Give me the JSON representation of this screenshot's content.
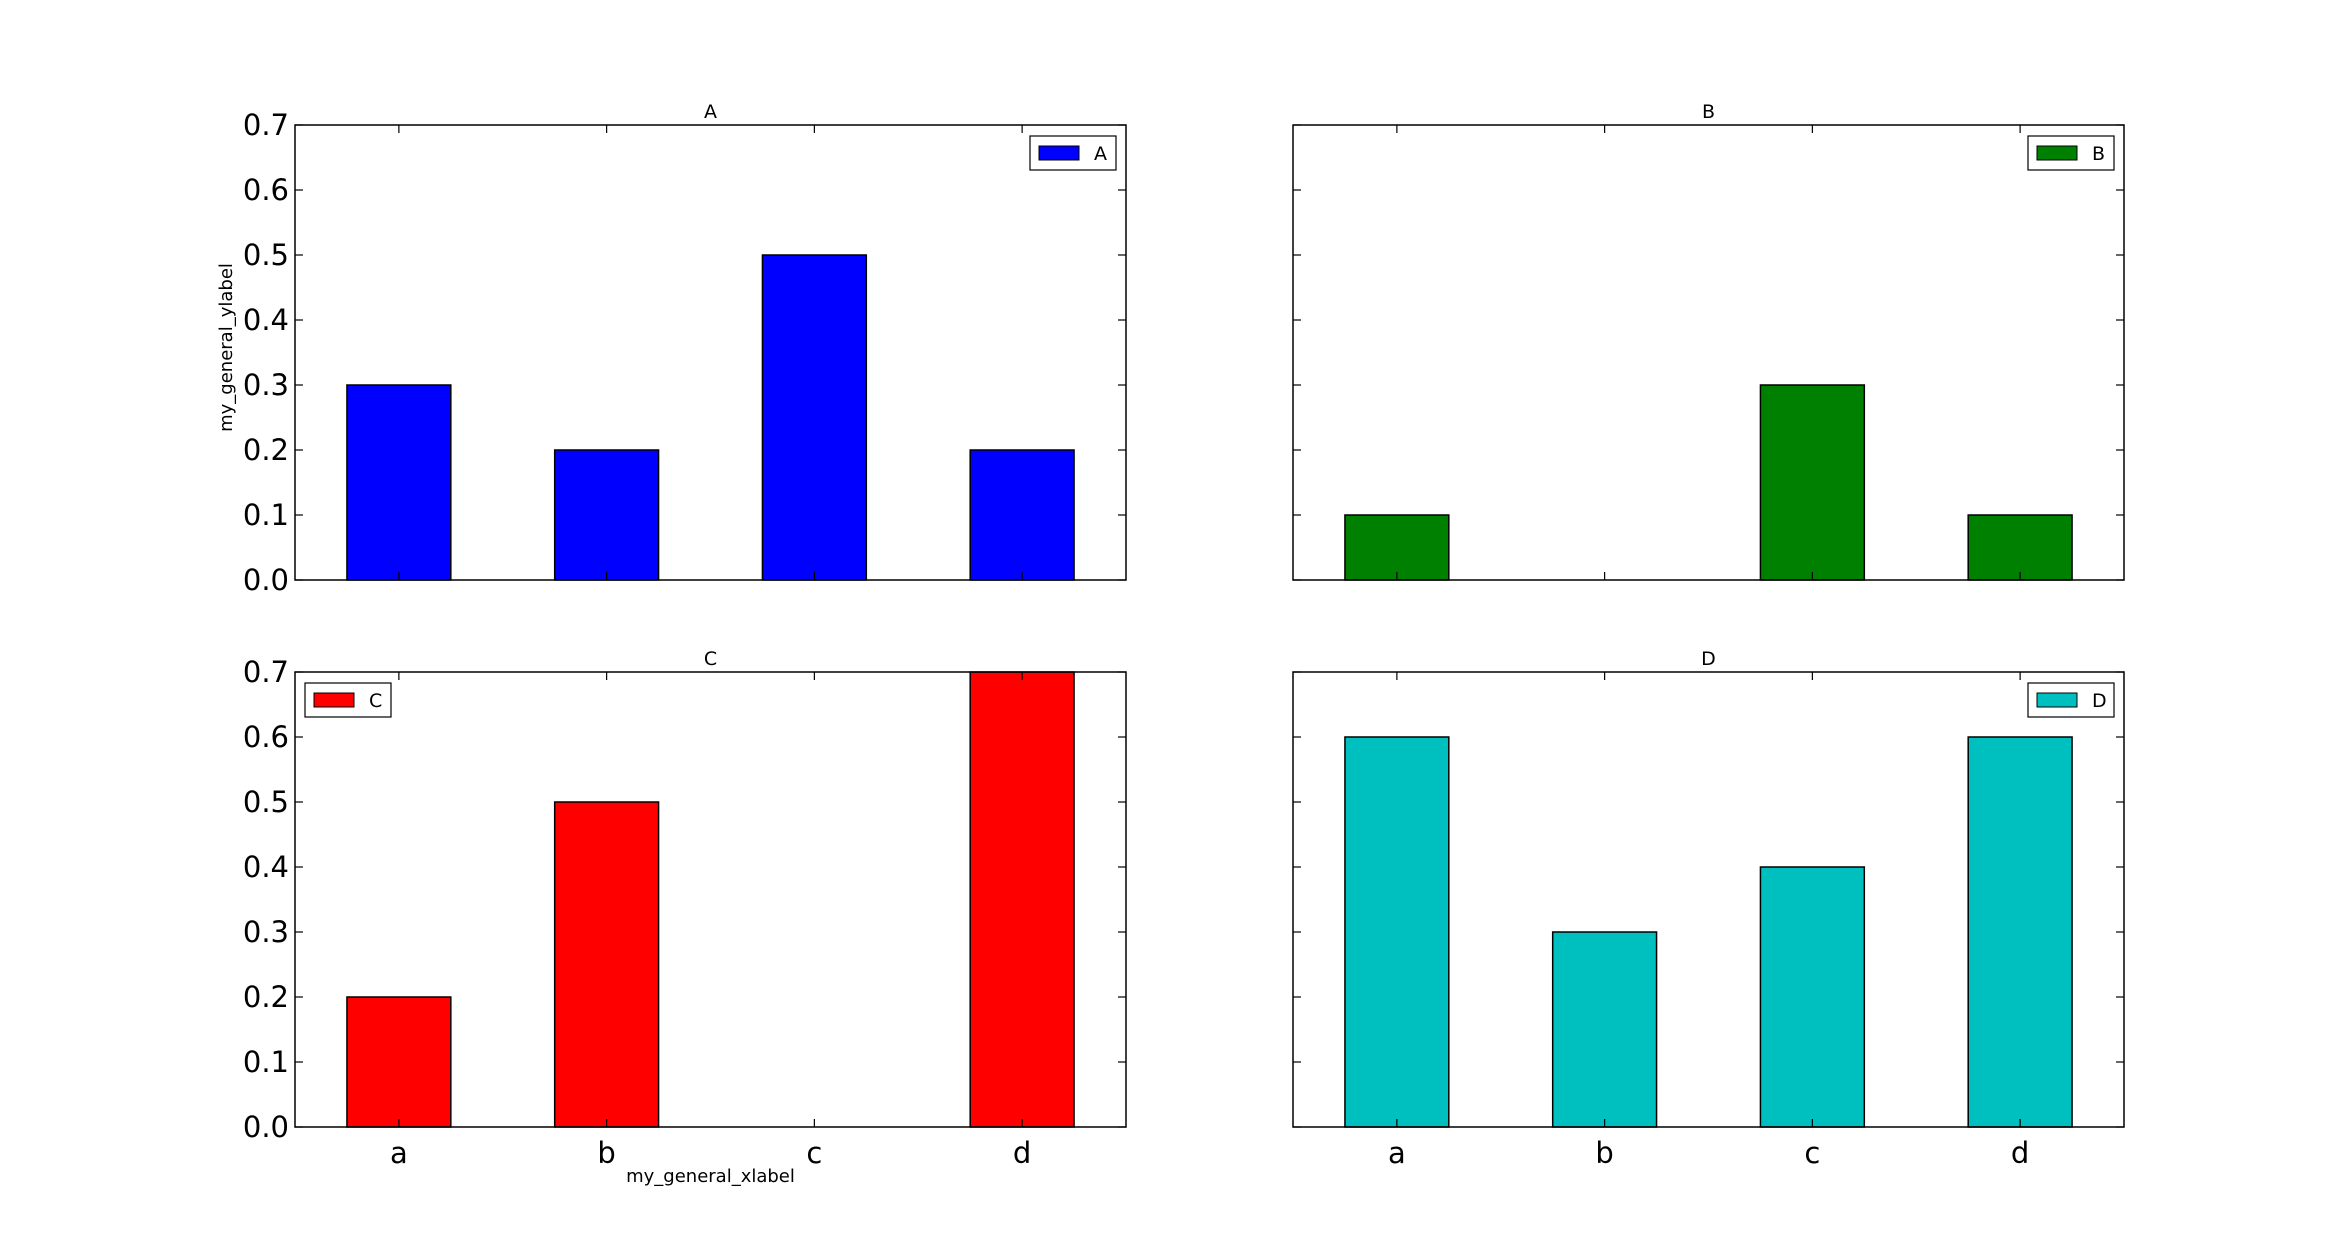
{
  "chart_data": [
    {
      "type": "bar",
      "title": "A",
      "categories": [
        "a",
        "b",
        "c",
        "d"
      ],
      "series": [
        {
          "name": "A",
          "values": [
            0.3,
            0.2,
            0.5,
            0.2
          ]
        }
      ],
      "color": "#0000ff",
      "ylim": [
        0,
        0.7
      ],
      "yticks": [
        "0.0",
        "0.1",
        "0.2",
        "0.3",
        "0.4",
        "0.5",
        "0.6",
        "0.7"
      ],
      "show_yticklabels": true,
      "show_xticklabels": false,
      "legend_position": "top-right",
      "ylabel": "my_general_ylabel",
      "xlabel": ""
    },
    {
      "type": "bar",
      "title": "B",
      "categories": [
        "a",
        "b",
        "c",
        "d"
      ],
      "series": [
        {
          "name": "B",
          "values": [
            0.1,
            0.0,
            0.3,
            0.1
          ]
        }
      ],
      "color": "#008000",
      "ylim": [
        0,
        0.7
      ],
      "yticks": [
        "0.0",
        "0.1",
        "0.2",
        "0.3",
        "0.4",
        "0.5",
        "0.6",
        "0.7"
      ],
      "show_yticklabels": false,
      "show_xticklabels": false,
      "legend_position": "top-right",
      "ylabel": "",
      "xlabel": ""
    },
    {
      "type": "bar",
      "title": "C",
      "categories": [
        "a",
        "b",
        "c",
        "d"
      ],
      "series": [
        {
          "name": "C",
          "values": [
            0.2,
            0.5,
            0.0,
            0.7
          ]
        }
      ],
      "color": "#ff0000",
      "ylim": [
        0,
        0.7
      ],
      "yticks": [
        "0.0",
        "0.1",
        "0.2",
        "0.3",
        "0.4",
        "0.5",
        "0.6",
        "0.7"
      ],
      "show_yticklabels": true,
      "show_xticklabels": true,
      "legend_position": "top-left",
      "ylabel": "",
      "xlabel": "my_general_xlabel"
    },
    {
      "type": "bar",
      "title": "D",
      "categories": [
        "a",
        "b",
        "c",
        "d"
      ],
      "series": [
        {
          "name": "D",
          "values": [
            0.6,
            0.3,
            0.4,
            0.6
          ]
        }
      ],
      "color": "#00bfbf",
      "ylim": [
        0,
        0.7
      ],
      "yticks": [
        "0.0",
        "0.1",
        "0.2",
        "0.3",
        "0.4",
        "0.5",
        "0.6",
        "0.7"
      ],
      "show_yticklabels": false,
      "show_xticklabels": true,
      "legend_position": "top-right",
      "ylabel": "",
      "xlabel": ""
    }
  ]
}
